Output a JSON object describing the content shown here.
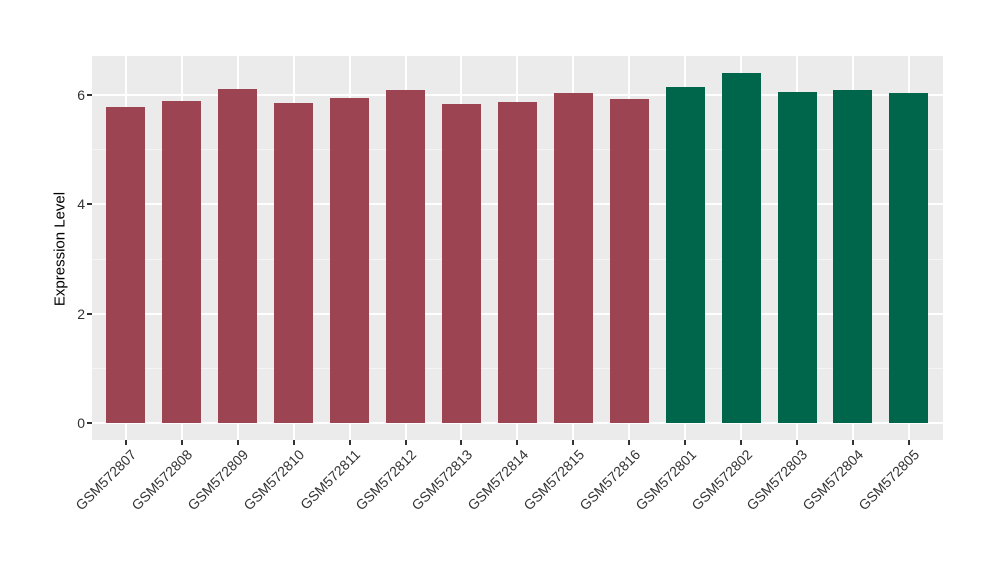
{
  "chart_data": {
    "type": "bar",
    "title": "",
    "xlabel": "",
    "ylabel": "Expression Level",
    "yticks": [
      0,
      2,
      4,
      6
    ],
    "yminor_ticks": [
      1,
      3,
      5
    ],
    "ylim": [
      0,
      6.7
    ],
    "grid": true,
    "legend_position": "none",
    "categories": [
      "GSM572807",
      "GSM572808",
      "GSM572809",
      "GSM572810",
      "GSM572811",
      "GSM572812",
      "GSM572813",
      "GSM572814",
      "GSM572815",
      "GSM572816",
      "GSM572801",
      "GSM572802",
      "GSM572803",
      "GSM572804",
      "GSM572805"
    ],
    "values": [
      5.77,
      5.89,
      6.1,
      5.84,
      5.93,
      6.09,
      5.82,
      5.86,
      6.02,
      5.92,
      6.13,
      6.4,
      6.05,
      6.09,
      6.02
    ],
    "bar_colors": [
      "#9C4452",
      "#9C4452",
      "#9C4452",
      "#9C4452",
      "#9C4452",
      "#9C4452",
      "#9C4452",
      "#9C4452",
      "#9C4452",
      "#9C4452",
      "#00664B",
      "#00664B",
      "#00664B",
      "#00664B",
      "#00664B"
    ]
  },
  "colors": {
    "group_maroon": "#9C4452",
    "group_green": "#00664B",
    "panel_background": "#EBEBEB",
    "grid_major": "#FFFFFF",
    "grid_minor": "#F5F5F5",
    "axis_text": "#333333",
    "axis_title": "#000000",
    "tick_mark": "#333333",
    "page_background": "#FFFFFF"
  }
}
